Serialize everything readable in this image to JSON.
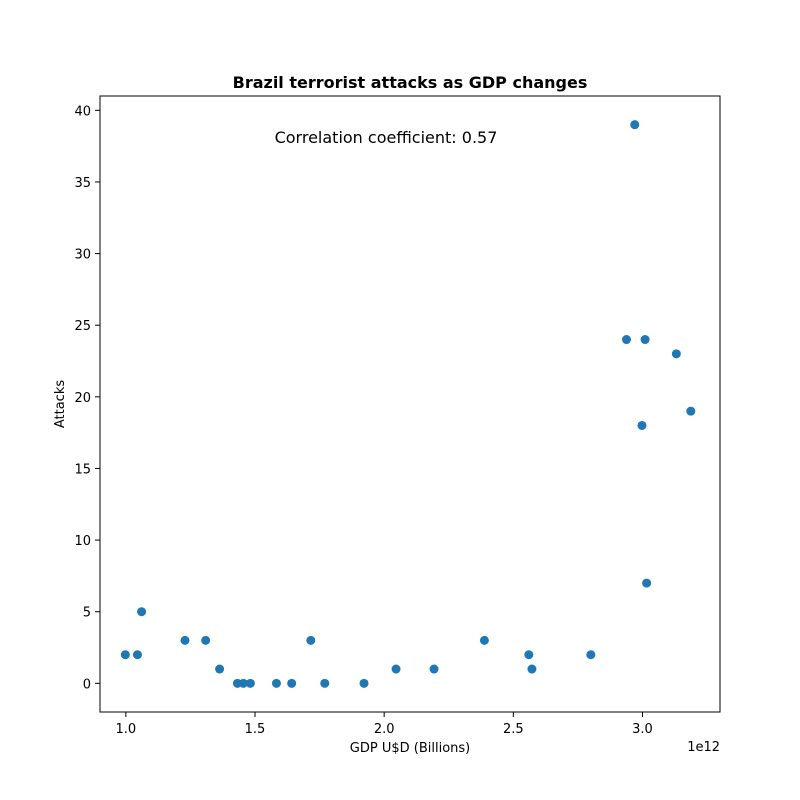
{
  "chart_data": {
    "type": "scatter",
    "title": "Brazil terrorist attacks as GDP changes",
    "xlabel": "GDP U$D (Billions)",
    "ylabel": "Attacks",
    "x_offset_label": "1e12",
    "annotation": "Correlation coefficient: 0.57",
    "xlim": [
      0.9,
      3.3
    ],
    "ylim": [
      -2,
      41
    ],
    "x_ticks": [
      1.0,
      1.5,
      2.0,
      2.5,
      3.0
    ],
    "x_tick_labels": [
      "1.0",
      "1.5",
      "2.0",
      "2.5",
      "3.0"
    ],
    "y_ticks": [
      0,
      5,
      10,
      15,
      20,
      25,
      30,
      35,
      40
    ],
    "y_tick_labels": [
      "0",
      "5",
      "10",
      "15",
      "20",
      "25",
      "30",
      "35",
      "40"
    ],
    "grid": false,
    "point_color": "#1f77b4",
    "points": [
      {
        "x": 0.998,
        "y": 2
      },
      {
        "x": 1.045,
        "y": 2
      },
      {
        "x": 1.061,
        "y": 5
      },
      {
        "x": 1.229,
        "y": 3
      },
      {
        "x": 1.309,
        "y": 3
      },
      {
        "x": 1.363,
        "y": 1
      },
      {
        "x": 1.432,
        "y": 0
      },
      {
        "x": 1.455,
        "y": 0
      },
      {
        "x": 1.482,
        "y": 0
      },
      {
        "x": 1.583,
        "y": 0
      },
      {
        "x": 1.642,
        "y": 0
      },
      {
        "x": 1.716,
        "y": 3
      },
      {
        "x": 1.77,
        "y": 0
      },
      {
        "x": 1.922,
        "y": 0
      },
      {
        "x": 2.046,
        "y": 1
      },
      {
        "x": 2.193,
        "y": 1
      },
      {
        "x": 2.388,
        "y": 3
      },
      {
        "x": 2.56,
        "y": 2
      },
      {
        "x": 2.572,
        "y": 1
      },
      {
        "x": 2.8,
        "y": 2
      },
      {
        "x": 2.938,
        "y": 24
      },
      {
        "x": 2.97,
        "y": 39
      },
      {
        "x": 2.998,
        "y": 18
      },
      {
        "x": 3.01,
        "y": 24
      },
      {
        "x": 3.016,
        "y": 7
      },
      {
        "x": 3.131,
        "y": 23
      },
      {
        "x": 3.187,
        "y": 19
      }
    ]
  }
}
